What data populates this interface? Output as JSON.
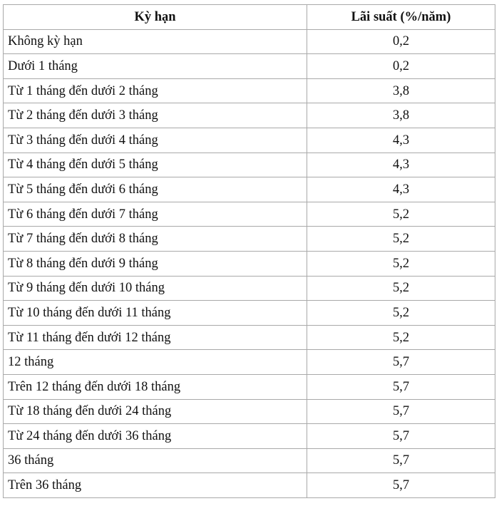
{
  "table": {
    "headers": [
      "Kỳ hạn",
      "Lãi suất (%/năm)"
    ],
    "rows": [
      {
        "term": "Không kỳ hạn",
        "rate": "0,2"
      },
      {
        "term": "Dưới 1 tháng",
        "rate": "0,2"
      },
      {
        "term": "Từ 1 tháng đến dưới 2 tháng",
        "rate": "3,8"
      },
      {
        "term": "Từ 2 tháng đến dưới 3 tháng",
        "rate": "3,8"
      },
      {
        "term": "Từ 3 tháng đến dưới 4 tháng",
        "rate": "4,3"
      },
      {
        "term": "Từ 4 tháng đến dưới 5 tháng",
        "rate": "4,3"
      },
      {
        "term": "Từ 5 tháng đến dưới 6 tháng",
        "rate": "4,3"
      },
      {
        "term": "Từ 6 tháng đến dưới 7 tháng",
        "rate": "5,2"
      },
      {
        "term": "Từ 7 tháng đến dưới 8 tháng",
        "rate": "5,2"
      },
      {
        "term": "Từ 8 tháng đến dưới 9 tháng",
        "rate": "5,2"
      },
      {
        "term": "Từ 9 tháng đến dưới 10 tháng",
        "rate": "5,2"
      },
      {
        "term": "Từ 10 tháng đến dưới 11 tháng",
        "rate": "5,2"
      },
      {
        "term": "Từ 11 tháng đến dưới 12 tháng",
        "rate": "5,2"
      },
      {
        "term": "12 tháng",
        "rate": "5,7"
      },
      {
        "term": "Trên 12 tháng đến dưới 18 tháng",
        "rate": "5,7"
      },
      {
        "term": "Từ 18 tháng đến dưới 24 tháng",
        "rate": "5,7"
      },
      {
        "term": "Từ 24 tháng đến dưới 36 tháng",
        "rate": "5,7"
      },
      {
        "term": "36 tháng",
        "rate": "5,7"
      },
      {
        "term": "Trên 36 tháng",
        "rate": "5,7"
      }
    ]
  }
}
